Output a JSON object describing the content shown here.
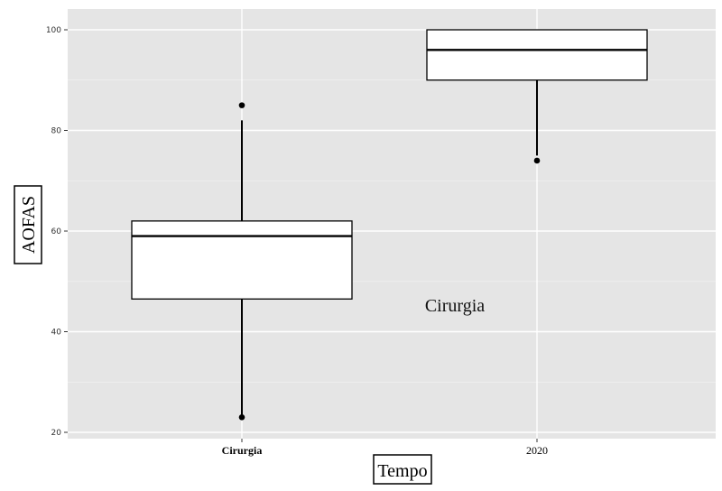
{
  "chart_data": {
    "type": "boxplot",
    "title": "",
    "xlabel": "Tempo",
    "ylabel": "AOFAS",
    "categories": [
      "Cirurgia",
      "2020"
    ],
    "y_ticks": [
      20,
      40,
      60,
      80,
      100
    ],
    "ylim": [
      19.5,
      104
    ],
    "grid": true,
    "boxes": [
      {
        "category": "Cirurgia",
        "whisker_low": 23,
        "q1": 46.5,
        "median": 59,
        "q3": 62,
        "whisker_high": 82,
        "outliers": [
          85,
          23
        ]
      },
      {
        "category": "2020",
        "whisker_low": 75,
        "q1": 90,
        "median": 96,
        "q3": 100,
        "whisker_high": 100,
        "outliers": [
          74
        ]
      }
    ],
    "annotations": [
      {
        "text": "Cirurgia"
      }
    ]
  }
}
